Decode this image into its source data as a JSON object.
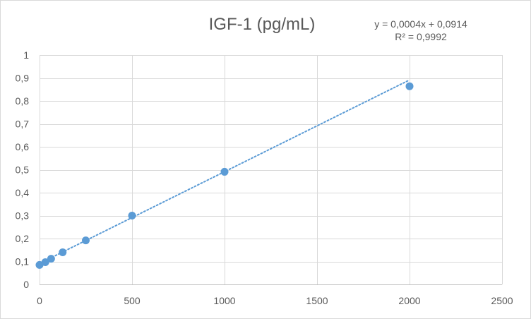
{
  "chart_data": {
    "type": "scatter",
    "title": "IGF-1 (pg/mL)",
    "xlabel": "",
    "ylabel": "",
    "xlim": [
      0,
      2500
    ],
    "ylim": [
      0,
      1
    ],
    "x_ticks": [
      "0",
      "500",
      "1000",
      "1500",
      "2000",
      "2500"
    ],
    "y_ticks": [
      "0",
      "0,1",
      "0,2",
      "0,3",
      "0,4",
      "0,5",
      "0,6",
      "0,7",
      "0,8",
      "0,9",
      "1"
    ],
    "grid": true,
    "legend": "none",
    "series": [
      {
        "color": "#5b9bd5",
        "points": [
          {
            "x": 0,
            "y": 0.085
          },
          {
            "x": 31.25,
            "y": 0.097
          },
          {
            "x": 62.5,
            "y": 0.112
          },
          {
            "x": 125,
            "y": 0.14
          },
          {
            "x": 250,
            "y": 0.192
          },
          {
            "x": 500,
            "y": 0.3
          },
          {
            "x": 1000,
            "y": 0.491
          },
          {
            "x": 2000,
            "y": 0.864
          }
        ]
      }
    ],
    "trendline": {
      "type": "linear",
      "slope": 0.0004,
      "intercept": 0.0914,
      "x_range": [
        0,
        2000
      ],
      "color": "#5b9bd5",
      "style": "dotted",
      "equation": "y = 0,0004x + 0,0914",
      "r_squared": "R² = 0,9992"
    }
  }
}
